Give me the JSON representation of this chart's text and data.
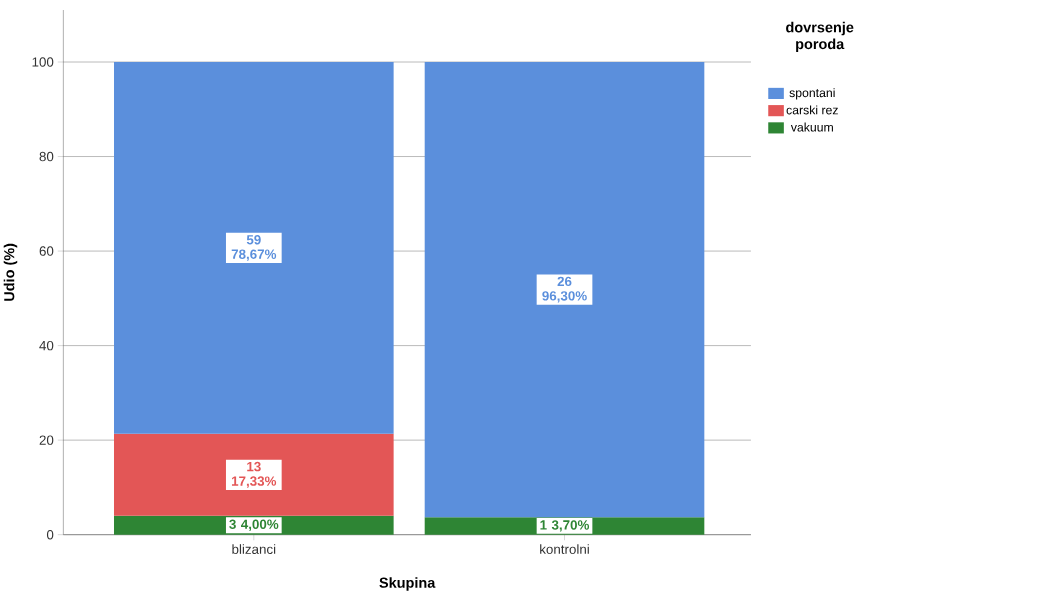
{
  "chart_data": {
    "type": "bar",
    "stacked": true,
    "xlabel": "Skupina",
    "ylabel": "Udio (%)",
    "legend_title": "dovrsenje poroda",
    "legend": "top right",
    "grid": "y",
    "categories": [
      "blizanci",
      "kontrolni"
    ],
    "ylim": [
      0,
      111
    ],
    "yticks": [
      0,
      20,
      40,
      60,
      80,
      100
    ],
    "series": [
      {
        "name": "vakuum",
        "color": "#2e8534",
        "values": [
          4.0,
          3.7
        ],
        "value_labels": [
          "3 4,00%",
          "1 3,70%"
        ]
      },
      {
        "name": "carski rez",
        "color": "#e35656",
        "values": [
          17.33,
          null
        ],
        "value_labels": [
          "13 17,33%",
          null
        ]
      },
      {
        "name": "spontani",
        "color": "#5b8fdc",
        "values": [
          78.67,
          96.3
        ],
        "value_labels": [
          "59 78,67%",
          "26 96,30%"
        ]
      }
    ]
  }
}
